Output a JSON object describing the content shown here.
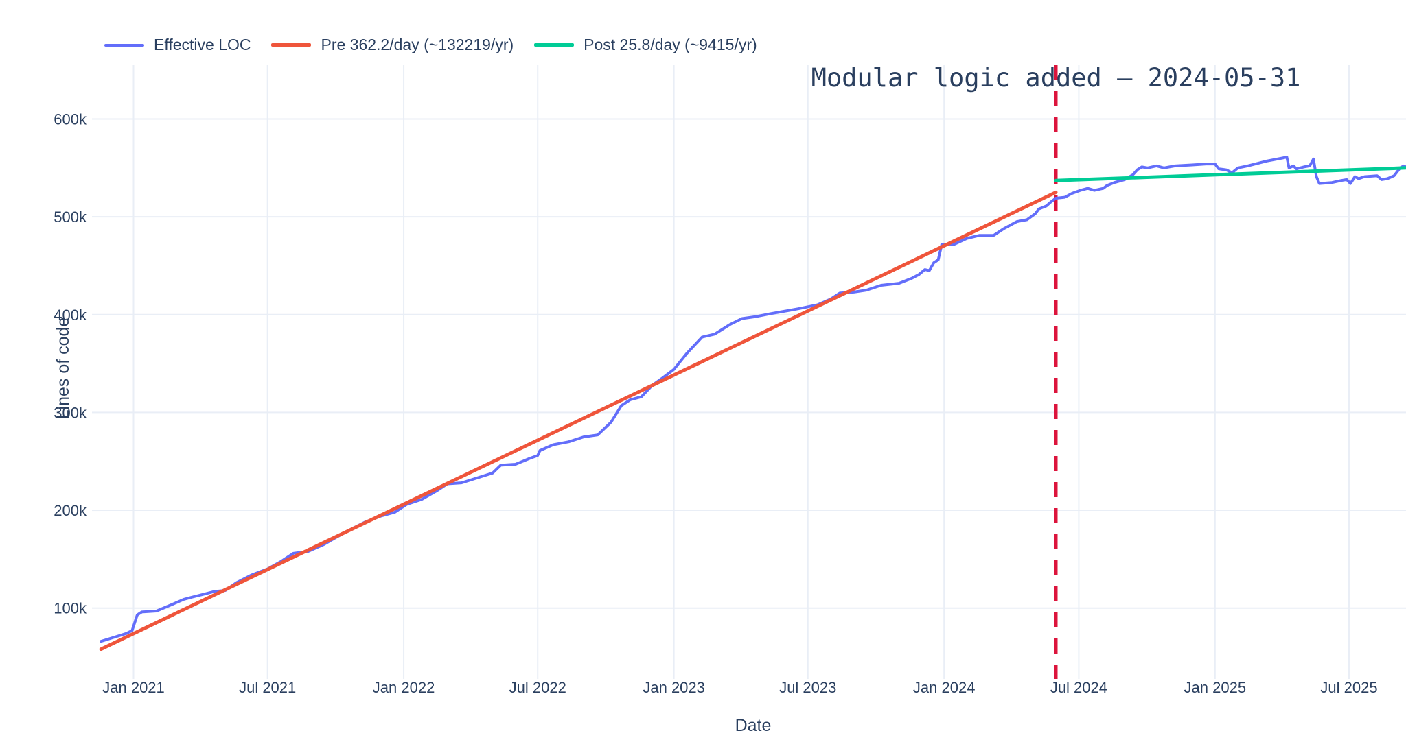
{
  "chart_data": {
    "type": "line",
    "x_axis": {
      "label": "Date",
      "range": [
        "2020-11-17",
        "2025-09-16"
      ],
      "ticks": [
        {
          "date": "2021-01-01",
          "label": "Jan 2021"
        },
        {
          "date": "2021-07-01",
          "label": "Jul 2021"
        },
        {
          "date": "2022-01-01",
          "label": "Jan 2022"
        },
        {
          "date": "2022-07-01",
          "label": "Jul 2022"
        },
        {
          "date": "2023-01-01",
          "label": "Jan 2023"
        },
        {
          "date": "2023-07-01",
          "label": "Jul 2023"
        },
        {
          "date": "2024-01-01",
          "label": "Jan 2024"
        },
        {
          "date": "2024-07-01",
          "label": "Jul 2024"
        },
        {
          "date": "2025-01-01",
          "label": "Jan 2025"
        },
        {
          "date": "2025-07-01",
          "label": "Jul 2025"
        }
      ]
    },
    "y_axis": {
      "label": "Lines of code",
      "unit": "thousand LOC",
      "range_k": [
        36,
        655
      ],
      "ticks": [
        {
          "value_k": 100,
          "label": "100k"
        },
        {
          "value_k": 200,
          "label": "200k"
        },
        {
          "value_k": 300,
          "label": "300k"
        },
        {
          "value_k": 400,
          "label": "400k"
        },
        {
          "value_k": 500,
          "label": "500k"
        },
        {
          "value_k": 600,
          "label": "600k"
        }
      ]
    },
    "annotation": {
      "text": "Modular logic added — 2024-05-31",
      "date": "2024-05-31"
    },
    "vline": {
      "date": "2024-05-31",
      "color": "#DC143C",
      "style": "dash",
      "width": 5
    },
    "colors": {
      "text": "#2a3f5f",
      "grid": "#e9eef6",
      "background": "#ffffff"
    },
    "legend_position": "top-left",
    "series": [
      {
        "name": "Effective LOC",
        "color": "#636EFA",
        "line_width": 4,
        "points": [
          [
            "2020-11-18",
            66
          ],
          [
            "2020-12-05",
            70
          ],
          [
            "2020-12-22",
            74
          ],
          [
            "2020-12-30",
            77
          ],
          [
            "2021-01-06",
            93
          ],
          [
            "2021-01-12",
            96
          ],
          [
            "2021-02-01",
            97
          ],
          [
            "2021-02-20",
            103
          ],
          [
            "2021-03-10",
            109
          ],
          [
            "2021-03-20",
            111
          ],
          [
            "2021-04-05",
            114
          ],
          [
            "2021-04-20",
            117
          ],
          [
            "2021-05-05",
            118
          ],
          [
            "2021-05-20",
            126
          ],
          [
            "2021-06-10",
            134
          ],
          [
            "2021-07-01",
            140
          ],
          [
            "2021-07-20",
            148
          ],
          [
            "2021-08-05",
            156
          ],
          [
            "2021-08-25",
            158
          ],
          [
            "2021-09-15",
            165
          ],
          [
            "2021-10-01",
            172
          ],
          [
            "2021-10-20",
            180
          ],
          [
            "2021-11-10",
            188
          ],
          [
            "2021-12-01",
            194
          ],
          [
            "2021-12-20",
            198
          ],
          [
            "2022-01-05",
            206
          ],
          [
            "2022-01-25",
            211
          ],
          [
            "2022-02-15",
            220
          ],
          [
            "2022-03-01",
            227
          ],
          [
            "2022-03-20",
            228
          ],
          [
            "2022-04-10",
            233
          ],
          [
            "2022-05-01",
            238
          ],
          [
            "2022-05-12",
            246
          ],
          [
            "2022-06-01",
            247
          ],
          [
            "2022-06-20",
            253
          ],
          [
            "2022-07-01",
            256
          ],
          [
            "2022-07-04",
            261
          ],
          [
            "2022-07-22",
            267
          ],
          [
            "2022-08-12",
            270
          ],
          [
            "2022-09-01",
            275
          ],
          [
            "2022-09-20",
            277
          ],
          [
            "2022-10-08",
            290
          ],
          [
            "2022-10-22",
            307
          ],
          [
            "2022-11-03",
            313
          ],
          [
            "2022-11-18",
            316
          ],
          [
            "2022-12-03",
            328
          ],
          [
            "2022-12-18",
            336
          ],
          [
            "2023-01-01",
            344
          ],
          [
            "2023-01-18",
            360
          ],
          [
            "2023-02-08",
            377
          ],
          [
            "2023-02-25",
            380
          ],
          [
            "2023-03-18",
            390
          ],
          [
            "2023-04-03",
            396
          ],
          [
            "2023-04-22",
            398
          ],
          [
            "2023-05-12",
            401
          ],
          [
            "2023-06-03",
            404
          ],
          [
            "2023-06-18",
            406
          ],
          [
            "2023-07-01",
            408
          ],
          [
            "2023-07-14",
            410
          ],
          [
            "2023-08-01",
            416
          ],
          [
            "2023-08-13",
            422
          ],
          [
            "2023-09-01",
            423
          ],
          [
            "2023-09-18",
            425
          ],
          [
            "2023-10-08",
            430
          ],
          [
            "2023-11-01",
            432
          ],
          [
            "2023-11-18",
            437
          ],
          [
            "2023-11-28",
            441
          ],
          [
            "2023-12-06",
            446
          ],
          [
            "2023-12-12",
            445
          ],
          [
            "2023-12-18",
            453
          ],
          [
            "2023-12-24",
            456
          ],
          [
            "2023-12-29",
            472
          ],
          [
            "2024-01-15",
            472
          ],
          [
            "2024-02-01",
            478
          ],
          [
            "2024-02-18",
            481
          ],
          [
            "2024-03-08",
            481
          ],
          [
            "2024-03-22",
            488
          ],
          [
            "2024-04-08",
            495
          ],
          [
            "2024-04-22",
            497
          ],
          [
            "2024-05-03",
            503
          ],
          [
            "2024-05-08",
            508
          ],
          [
            "2024-05-18",
            511
          ],
          [
            "2024-05-24",
            515
          ],
          [
            "2024-05-31",
            519
          ],
          [
            "2024-06-12",
            520
          ],
          [
            "2024-06-22",
            524
          ],
          [
            "2024-07-03",
            527
          ],
          [
            "2024-07-13",
            529
          ],
          [
            "2024-07-22",
            527
          ],
          [
            "2024-08-03",
            529
          ],
          [
            "2024-08-08",
            532
          ],
          [
            "2024-08-18",
            535
          ],
          [
            "2024-09-01",
            538
          ],
          [
            "2024-09-12",
            543
          ],
          [
            "2024-09-18",
            548
          ],
          [
            "2024-09-24",
            551
          ],
          [
            "2024-10-02",
            550
          ],
          [
            "2024-10-14",
            552
          ],
          [
            "2024-10-24",
            550
          ],
          [
            "2024-11-08",
            552
          ],
          [
            "2024-12-01",
            553
          ],
          [
            "2024-12-20",
            554
          ],
          [
            "2025-01-01",
            554
          ],
          [
            "2025-01-06",
            549
          ],
          [
            "2025-01-16",
            548
          ],
          [
            "2025-01-24",
            545
          ],
          [
            "2025-02-01",
            550
          ],
          [
            "2025-02-14",
            552
          ],
          [
            "2025-03-12",
            557
          ],
          [
            "2025-04-02",
            560
          ],
          [
            "2025-04-08",
            561
          ],
          [
            "2025-04-11",
            550
          ],
          [
            "2025-04-17",
            552
          ],
          [
            "2025-04-21",
            549
          ],
          [
            "2025-05-01",
            551
          ],
          [
            "2025-05-09",
            552
          ],
          [
            "2025-05-14",
            559
          ],
          [
            "2025-05-18",
            541
          ],
          [
            "2025-05-22",
            534
          ],
          [
            "2025-06-08",
            535
          ],
          [
            "2025-06-20",
            537
          ],
          [
            "2025-06-28",
            538
          ],
          [
            "2025-07-03",
            534
          ],
          [
            "2025-07-09",
            541
          ],
          [
            "2025-07-14",
            539
          ],
          [
            "2025-07-22",
            541
          ],
          [
            "2025-08-08",
            542
          ],
          [
            "2025-08-14",
            538
          ],
          [
            "2025-08-22",
            539
          ],
          [
            "2025-08-31",
            542
          ],
          [
            "2025-09-04",
            546
          ],
          [
            "2025-09-08",
            550
          ],
          [
            "2025-09-13",
            552
          ],
          [
            "2025-09-16",
            551
          ]
        ]
      },
      {
        "name": "Pre 362.2/day (~132219/yr)",
        "color": "#EF553B",
        "line_width": 5,
        "points": [
          [
            "2020-11-18",
            58
          ],
          [
            "2024-05-31",
            525
          ]
        ]
      },
      {
        "name": "Post 25.8/day (~9415/yr)",
        "color": "#00CC96",
        "line_width": 5,
        "points": [
          [
            "2024-05-31",
            537
          ],
          [
            "2025-09-16",
            550
          ]
        ]
      }
    ]
  }
}
